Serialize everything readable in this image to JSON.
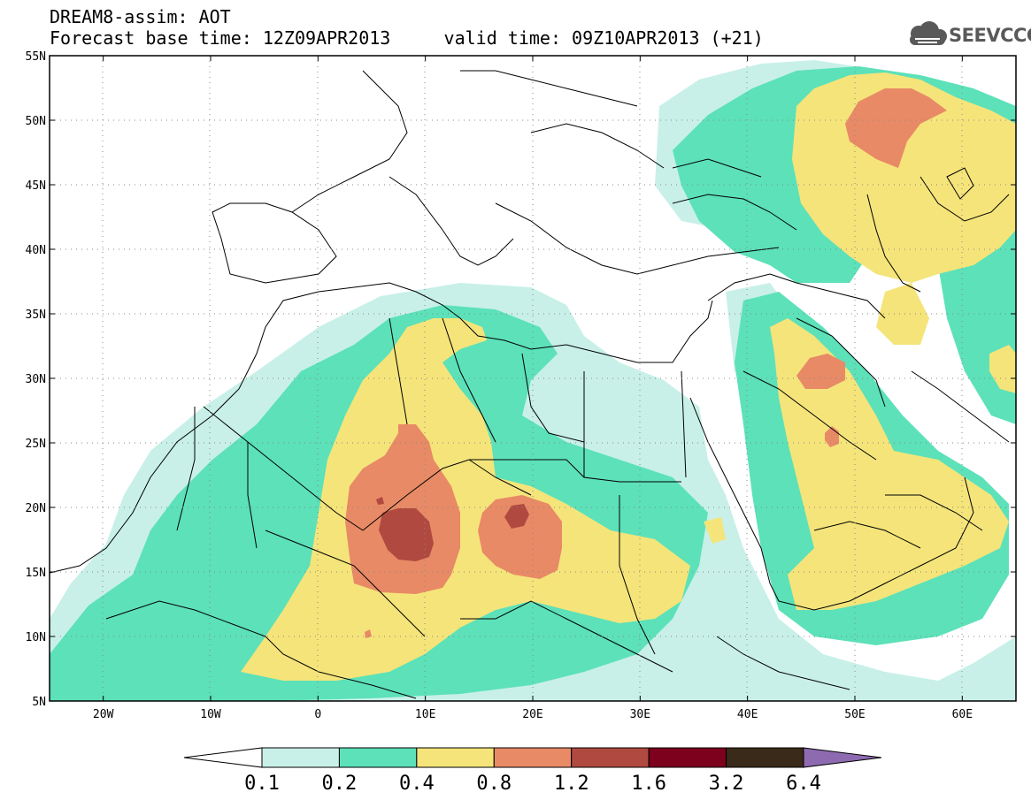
{
  "header": {
    "line1": "DREAM8-assim: AOT",
    "base_time_label": "Forecast base time: 12Z09APR2013",
    "valid_time_label": "valid time: 09Z10APR2013 (+21)"
  },
  "logo": {
    "text": "SEEVCCC",
    "icon": "cloud-icon"
  },
  "map": {
    "lat_labels": [
      "55N",
      "50N",
      "45N",
      "40N",
      "35N",
      "30N",
      "25N",
      "20N",
      "15N",
      "10N",
      "5N"
    ],
    "lon_labels": [
      "20W",
      "10W",
      "0",
      "10E",
      "20E",
      "30E",
      "40E",
      "50E",
      "60E"
    ],
    "lon_range": [
      -25,
      65
    ],
    "lat_range": [
      5,
      55
    ],
    "grid": true
  },
  "legend": {
    "labels": [
      "0.1",
      "0.2",
      "0.4",
      "0.8",
      "1.2",
      "1.6",
      "3.2",
      "6.4"
    ],
    "colors": [
      "#ffffff",
      "#c8f0e8",
      "#5ce1b9",
      "#f5e47a",
      "#e88a66",
      "#b04a40",
      "#7d001c",
      "#3a2a1a",
      "#8e6bb0"
    ]
  }
}
